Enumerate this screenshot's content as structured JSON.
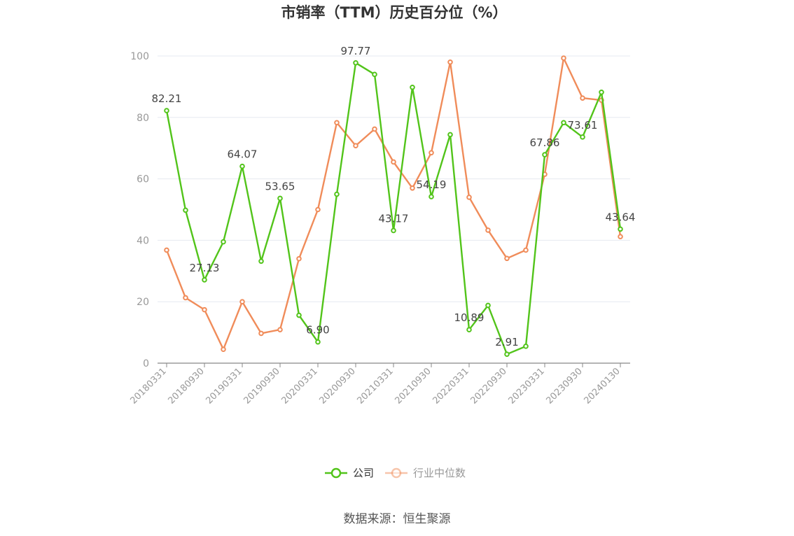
{
  "chart_data": {
    "type": "line",
    "title": "市销率（TTM）历史百分位（%）",
    "xlabel": "",
    "ylabel": "",
    "ylim": [
      0,
      100
    ],
    "yticks": [
      0,
      20,
      40,
      60,
      80,
      100
    ],
    "grid": true,
    "legend_position": "bottom-center",
    "x": [
      "20180331",
      "20180630",
      "20180930",
      "20181231",
      "20190331",
      "20190630",
      "20190930",
      "20191231",
      "20200331",
      "20200630",
      "20200930",
      "20201231",
      "20210331",
      "20210630",
      "20210930",
      "20211231",
      "20220331",
      "20220630",
      "20220930",
      "20221231",
      "20230331",
      "20230630",
      "20230930",
      "20231231",
      "20240130"
    ],
    "x_tick_labels": [
      "20180331",
      "20180930",
      "20190331",
      "20190930",
      "20200331",
      "20200930",
      "20210331",
      "20210930",
      "20220331",
      "20220930",
      "20230331",
      "20230930",
      "20240130"
    ],
    "series": [
      {
        "name": "公司",
        "color": "#52c41a",
        "values": [
          82.21,
          49.8,
          27.13,
          39.5,
          64.07,
          33.2,
          53.65,
          15.6,
          6.9,
          55.0,
          97.77,
          94.0,
          43.17,
          89.8,
          54.19,
          74.4,
          10.89,
          18.8,
          2.91,
          5.5,
          67.86,
          78.3,
          73.61,
          88.2,
          43.64
        ],
        "labels": {
          "0": "82.21",
          "2": "27.13",
          "4": "64.07",
          "6": "53.65",
          "8": "6.90",
          "10": "97.77",
          "12": "43.17",
          "14": "54.19",
          "16": "10.89",
          "18": "2.91",
          "20": "67.86",
          "22": "73.61",
          "24": "43.64"
        }
      },
      {
        "name": "行业中位数",
        "color": "#f08c5a",
        "values": [
          36.8,
          21.3,
          17.4,
          4.5,
          20.0,
          9.7,
          10.9,
          34.0,
          50.0,
          78.3,
          70.8,
          76.2,
          65.5,
          57.0,
          68.5,
          98.0,
          54.0,
          43.3,
          34.1,
          36.8,
          61.5,
          99.3,
          86.3,
          85.6,
          41.2
        ]
      }
    ],
    "source": "数据来源：恒生聚源"
  }
}
